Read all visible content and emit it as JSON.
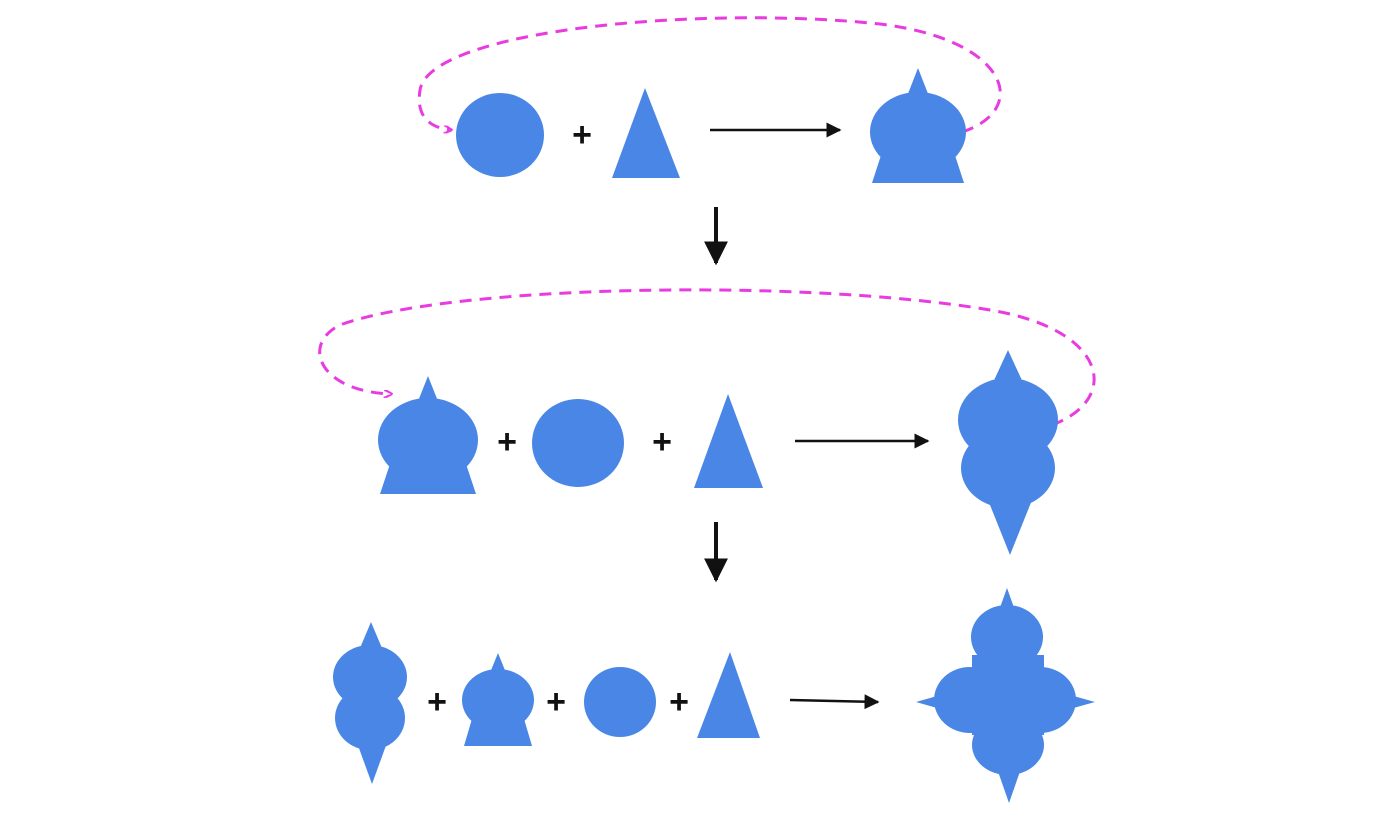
{
  "colors": {
    "shape": "#4A86E5",
    "arrow": "#111111",
    "feedback": "#E83BE0",
    "background": "#ffffff"
  },
  "operator_symbol": "+",
  "rows": [
    {
      "inputs": [
        "circle",
        "triangle"
      ],
      "output": "circle-triangle-bell",
      "feedback_from_output_to_first_input": true
    },
    {
      "inputs": [
        "circle-triangle-bell",
        "circle",
        "triangle"
      ],
      "output": "double-circle-spindle",
      "feedback_from_output_to_first_input": true
    },
    {
      "inputs": [
        "double-circle-spindle",
        "circle-triangle-bell",
        "circle",
        "triangle"
      ],
      "output": "four-lobed-star",
      "feedback_from_output_to_first_input": false
    }
  ],
  "icons": {
    "plus": "plus-icon",
    "arrow": "arrow-right-icon",
    "down_arrow": "arrow-down-icon",
    "feedback": "dashed-loop-arrow-icon"
  }
}
